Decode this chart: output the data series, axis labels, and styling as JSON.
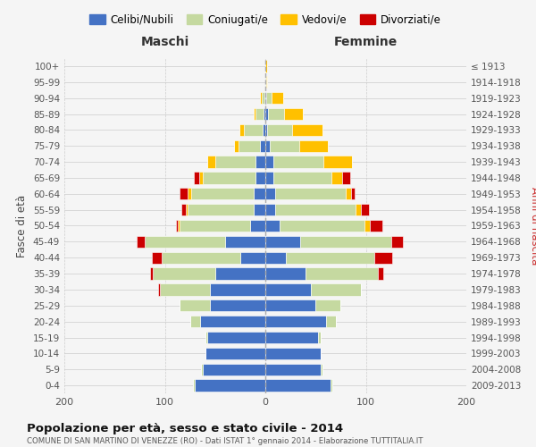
{
  "age_groups": [
    "0-4",
    "5-9",
    "10-14",
    "15-19",
    "20-24",
    "25-29",
    "30-34",
    "35-39",
    "40-44",
    "45-49",
    "50-54",
    "55-59",
    "60-64",
    "65-69",
    "70-74",
    "75-79",
    "80-84",
    "85-89",
    "90-94",
    "95-99",
    "100+"
  ],
  "birth_years": [
    "2009-2013",
    "2004-2008",
    "1999-2003",
    "1994-1998",
    "1989-1993",
    "1984-1988",
    "1979-1983",
    "1974-1978",
    "1969-1973",
    "1964-1968",
    "1959-1963",
    "1954-1958",
    "1949-1953",
    "1944-1948",
    "1939-1943",
    "1934-1938",
    "1929-1933",
    "1924-1928",
    "1919-1923",
    "1914-1918",
    "≤ 1913"
  ],
  "colors": {
    "celibi": "#4472c4",
    "coniugati": "#c5d9a0",
    "vedovi": "#ffc000",
    "divorziati": "#cc0000"
  },
  "maschi": {
    "celibi": [
      70,
      62,
      60,
      58,
      65,
      55,
      55,
      50,
      25,
      40,
      15,
      12,
      12,
      10,
      10,
      5,
      3,
      2,
      1,
      0,
      0
    ],
    "coniugati": [
      2,
      2,
      0,
      2,
      10,
      30,
      50,
      62,
      78,
      80,
      70,
      65,
      62,
      52,
      40,
      22,
      18,
      8,
      3,
      0,
      0
    ],
    "vedovi": [
      0,
      0,
      0,
      0,
      0,
      0,
      0,
      0,
      0,
      0,
      2,
      2,
      3,
      4,
      8,
      4,
      5,
      2,
      1,
      0,
      0
    ],
    "divorziati": [
      0,
      0,
      0,
      0,
      0,
      0,
      2,
      3,
      10,
      8,
      2,
      5,
      8,
      5,
      0,
      0,
      0,
      0,
      0,
      0,
      0
    ]
  },
  "femmine": {
    "celibi": [
      65,
      55,
      55,
      52,
      60,
      50,
      45,
      40,
      20,
      35,
      14,
      10,
      10,
      8,
      8,
      4,
      2,
      3,
      1,
      0,
      0
    ],
    "coniugati": [
      2,
      2,
      0,
      3,
      10,
      25,
      50,
      72,
      88,
      90,
      85,
      80,
      70,
      58,
      50,
      30,
      25,
      16,
      5,
      1,
      0
    ],
    "vedovi": [
      0,
      0,
      0,
      0,
      0,
      0,
      0,
      0,
      0,
      0,
      5,
      5,
      5,
      10,
      28,
      28,
      30,
      18,
      12,
      1,
      2
    ],
    "divorziati": [
      0,
      0,
      0,
      0,
      0,
      0,
      0,
      5,
      18,
      12,
      12,
      8,
      4,
      8,
      0,
      0,
      0,
      0,
      0,
      0,
      0
    ]
  },
  "xlim": 200,
  "title": "Popolazione per età, sesso e stato civile - 2014",
  "subtitle": "COMUNE DI SAN MARTINO DI VENEZZE (RO) - Dati ISTAT 1° gennaio 2014 - Elaborazione TUTTITALIA.IT",
  "ylabel_left": "Fasce di età",
  "ylabel_right": "Anni di nascita",
  "xlabel_left": "Maschi",
  "xlabel_right": "Femmine",
  "legend_labels": [
    "Celibi/Nubili",
    "Coniugati/e",
    "Vedovi/e",
    "Divorziati/e"
  ],
  "bg_color": "#f5f5f5"
}
